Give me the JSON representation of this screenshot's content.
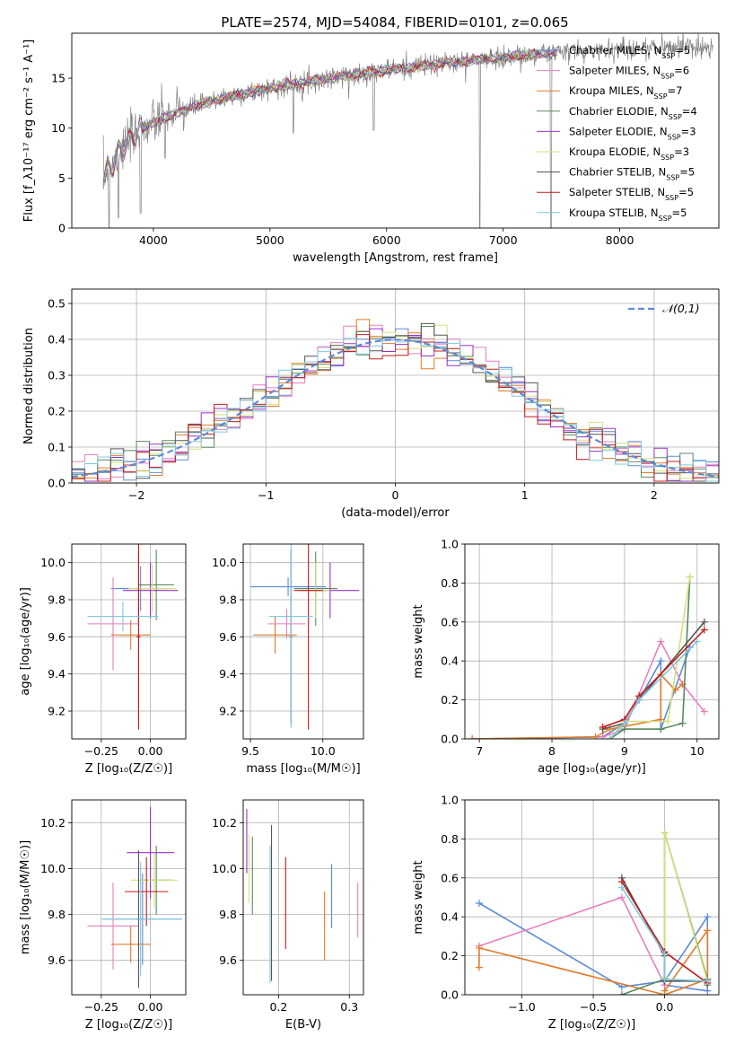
{
  "title": "PLATE=2574, MJD=54084, FIBERID=0101, z=0.065",
  "colors": {
    "grey": "#808080",
    "blue": "#5b8bd8",
    "orange": "#e07b2a",
    "green": "#5a8a5e",
    "purple": "#9b30c8",
    "yellow": "#d4e07a",
    "darkgray": "#555555",
    "red": "#c41a1a",
    "cyan": "#7fc8e0",
    "pink": "#e87fbf",
    "lime": "#a6d854",
    "legend_dash": "#5b8bd8"
  },
  "chart_data": [
    {
      "id": "spectrum",
      "type": "line",
      "xlabel": "wavelength [Angstrom, rest frame]",
      "ylabel": "Flux [f_λ10⁻¹⁷ erg cm⁻² s⁻¹ A⁻¹]",
      "xlim": [
        3300,
        8850
      ],
      "ylim": [
        0,
        19.5
      ],
      "xticks": [
        4000,
        5000,
        6000,
        7000,
        8000
      ],
      "yticks": [
        0,
        5,
        10,
        15
      ],
      "grid": false,
      "legend_position": "top-right",
      "legend": [
        {
          "label": "Chabrier MILES, N_SSP=5",
          "color": "#5b8bd8"
        },
        {
          "label": "Salpeter MILES, N_SSP=6",
          "color": "#e87fbf"
        },
        {
          "label": "Kroupa MILES, N_SSP=7",
          "color": "#e07b2a"
        },
        {
          "label": "Chabrier ELODIE, N_SSP=4",
          "color": "#5a8a5e"
        },
        {
          "label": "Salpeter ELODIE, N_SSP=3",
          "color": "#9b30c8"
        },
        {
          "label": "Kroupa ELODIE, N_SSP=3",
          "color": "#d4e07a"
        },
        {
          "label": "Chabrier STELIB, N_SSP=5",
          "color": "#555555"
        },
        {
          "label": "Salpeter STELIB, N_SSP=5",
          "color": "#c41a1a"
        },
        {
          "label": "Kroupa STELIB, N_SSP=5",
          "color": "#7fc8e0"
        }
      ],
      "continuum": {
        "x": [
          3570,
          3700,
          3850,
          4000,
          4300,
          4600,
          5000,
          5500,
          6000,
          6500,
          7000,
          7500,
          8000,
          8500,
          8800
        ],
        "y": [
          5.0,
          7.5,
          9.5,
          10.5,
          12.0,
          13.0,
          14.0,
          15.0,
          15.8,
          16.5,
          17.1,
          17.6,
          17.9,
          18.1,
          18.2
        ]
      },
      "data_range": [
        3570,
        8800
      ],
      "model_range": [
        3570,
        7460
      ],
      "dips": [
        {
          "x": 3620,
          "y": 0.0
        },
        {
          "x": 3700,
          "y": 1.0
        },
        {
          "x": 3890,
          "y": 1.5
        },
        {
          "x": 4100,
          "y": 7.0
        },
        {
          "x": 5200,
          "y": 9.5
        },
        {
          "x": 5890,
          "y": 9.8
        },
        {
          "x": 6800,
          "y": 0.0
        },
        {
          "x": 7410,
          "y": 0.0
        }
      ]
    },
    {
      "id": "residuals",
      "type": "histogram",
      "xlabel": "(data-model)/error",
      "ylabel": "Normed distribution",
      "xlim": [
        -2.5,
        2.5
      ],
      "ylim": [
        0,
        0.54
      ],
      "xticks": [
        -2,
        -1,
        0,
        1,
        2
      ],
      "yticks": [
        0.0,
        0.1,
        0.2,
        0.3,
        0.4,
        0.5
      ],
      "grid": true,
      "legend_position": "top-right",
      "legend": [
        {
          "label": "𝒩(0,1)",
          "color": "#5b8bd8"
        }
      ],
      "bin_width": 0.1
    },
    {
      "id": "age-vs-Z",
      "type": "errorbar",
      "xlabel": "Z [log₁₀(Z/Z☉)]",
      "ylabel": "age  [log₁₀(age/yr)]",
      "xlim": [
        -0.4,
        0.18
      ],
      "ylim": [
        9.05,
        10.1
      ],
      "xticks": [
        -0.25,
        0.0
      ],
      "yticks": [
        9.2,
        9.4,
        9.6,
        9.8,
        10.0
      ],
      "grid": true,
      "points": [
        {
          "x": -0.05,
          "y": 9.86,
          "xerr": 0.15,
          "yerr": 0.12,
          "color": "#5b8bd8"
        },
        {
          "x": -0.19,
          "y": 9.67,
          "xerr": 0.13,
          "yerr": 0.25,
          "color": "#e87fbf"
        },
        {
          "x": -0.1,
          "y": 9.61,
          "xerr": 0.1,
          "yerr": 0.08,
          "color": "#e07b2a"
        },
        {
          "x": 0.03,
          "y": 9.88,
          "xerr": 0.09,
          "yerr": 0.19,
          "color": "#5a8a5e"
        },
        {
          "x": 0.0,
          "y": 9.85,
          "xerr": 0.14,
          "yerr": 0.15,
          "color": "#9b30c8"
        },
        {
          "x": 0.01,
          "y": 9.86,
          "xerr": 0.12,
          "yerr": 0.13,
          "color": "#d4e07a"
        },
        {
          "x": -0.06,
          "y": 9.6,
          "xerr": 0.01,
          "yerr": 0.46,
          "color": "#555555"
        },
        {
          "x": -0.06,
          "y": 9.6,
          "xerr": 0.01,
          "yerr": 0.5,
          "color": "#c41a1a"
        },
        {
          "x": -0.14,
          "y": 9.71,
          "xerr": 0.18,
          "yerr": 0.08,
          "color": "#7fc8e0"
        }
      ]
    },
    {
      "id": "age-vs-mass",
      "type": "errorbar",
      "xlabel": "mass [log₁₀(M/M☉)]",
      "ylabel": "",
      "xlim": [
        9.45,
        10.28
      ],
      "ylim": [
        9.05,
        10.1
      ],
      "xticks": [
        9.5,
        10.0
      ],
      "yticks": [
        9.2,
        9.4,
        9.6,
        9.8,
        10.0
      ],
      "grid": true,
      "points": [
        {
          "x": 9.76,
          "y": 9.87,
          "xerr": 0.26,
          "yerr": 0.05,
          "color": "#5b8bd8"
        },
        {
          "x": 9.75,
          "y": 9.67,
          "xerr": 0.13,
          "yerr": 0.08,
          "color": "#e87fbf"
        },
        {
          "x": 9.67,
          "y": 9.61,
          "xerr": 0.15,
          "yerr": 0.1,
          "color": "#e07b2a"
        },
        {
          "x": 9.95,
          "y": 9.86,
          "xerr": 0.15,
          "yerr": 0.2,
          "color": "#5a8a5e"
        },
        {
          "x": 10.05,
          "y": 9.85,
          "xerr": 0.2,
          "yerr": 0.15,
          "color": "#9b30c8"
        },
        {
          "x": 9.95,
          "y": 9.85,
          "xerr": 0.1,
          "yerr": 0.15,
          "color": "#d4e07a"
        },
        {
          "x": 9.78,
          "y": 9.6,
          "xerr": 0.01,
          "yerr": 0.47,
          "color": "#555555"
        },
        {
          "x": 9.9,
          "y": 9.85,
          "xerr": 0.1,
          "yerr": 0.75,
          "color": "#c41a1a"
        },
        {
          "x": 9.78,
          "y": 9.71,
          "xerr": 0.15,
          "yerr": 0.6,
          "color": "#7fc8e0"
        }
      ]
    },
    {
      "id": "mass-weight-vs-age",
      "type": "line",
      "xlabel": "age  [log₁₀(age/yr)]",
      "ylabel": "mass weight",
      "xlim": [
        6.8,
        10.3
      ],
      "ylim": [
        0,
        1.0
      ],
      "xticks": [
        7,
        8,
        9,
        10
      ],
      "yticks": [
        0.0,
        0.2,
        0.4,
        0.6,
        0.8,
        1.0
      ],
      "grid": true,
      "series": [
        {
          "color": "#5b8bd8",
          "x": [
            6.9,
            8.7,
            9.0,
            9.2,
            9.5,
            9.5,
            9.9
          ],
          "y": [
            0.0,
            0.01,
            0.08,
            0.2,
            0.4,
            0.05,
            0.47
          ]
        },
        {
          "color": "#e87fbf",
          "x": [
            8.7,
            9.0,
            9.5,
            9.8,
            10.1
          ],
          "y": [
            0.01,
            0.05,
            0.5,
            0.28,
            0.14
          ]
        },
        {
          "color": "#e07b2a",
          "x": [
            6.9,
            8.6,
            8.8,
            9.5,
            9.5,
            9.7,
            9.8
          ],
          "y": [
            0.0,
            0.01,
            0.05,
            0.1,
            0.33,
            0.25,
            0.28
          ]
        },
        {
          "color": "#5a8a5e",
          "x": [
            8.8,
            9.0,
            9.5,
            9.8,
            9.9
          ],
          "y": [
            0.0,
            0.05,
            0.05,
            0.08,
            0.83
          ]
        },
        {
          "color": "#d4e07a",
          "x": [
            8.8,
            9.0,
            9.6,
            9.9
          ],
          "y": [
            0.0,
            0.09,
            0.09,
            0.83
          ]
        },
        {
          "color": "#555555",
          "x": [
            8.7,
            9.0,
            9.2,
            10.1
          ],
          "y": [
            0.05,
            0.08,
            0.2,
            0.6
          ]
        },
        {
          "color": "#c41a1a",
          "x": [
            8.7,
            9.0,
            9.2,
            10.1
          ],
          "y": [
            0.06,
            0.1,
            0.22,
            0.56
          ]
        },
        {
          "color": "#7fc8e0",
          "x": [
            8.8,
            9.0,
            9.2,
            10.0
          ],
          "y": [
            0.0,
            0.08,
            0.2,
            0.5
          ]
        }
      ]
    },
    {
      "id": "mass-vs-Z",
      "type": "errorbar",
      "xlabel": "Z [log₁₀(Z/Z☉)]",
      "ylabel": "mass [log₁₀(M/M☉)]",
      "xlim": [
        -0.4,
        0.18
      ],
      "ylim": [
        9.45,
        10.3
      ],
      "xticks": [
        -0.25,
        0.0
      ],
      "yticks": [
        9.6,
        9.8,
        10.0,
        10.2
      ],
      "grid": true,
      "points": [
        {
          "x": -0.04,
          "y": 9.78,
          "xerr": 0.2,
          "yerr": 0.2,
          "color": "#5b8bd8"
        },
        {
          "x": -0.19,
          "y": 9.75,
          "xerr": 0.13,
          "yerr": 0.19,
          "color": "#e87fbf"
        },
        {
          "x": -0.1,
          "y": 9.67,
          "xerr": 0.1,
          "yerr": 0.08,
          "color": "#e07b2a"
        },
        {
          "x": 0.03,
          "y": 9.95,
          "xerr": 0.08,
          "yerr": 0.15,
          "color": "#5a8a5e"
        },
        {
          "x": 0.0,
          "y": 10.07,
          "xerr": 0.12,
          "yerr": 0.2,
          "color": "#9b30c8"
        },
        {
          "x": 0.02,
          "y": 9.95,
          "xerr": 0.12,
          "yerr": 0.12,
          "color": "#d4e07a"
        },
        {
          "x": -0.06,
          "y": 9.78,
          "xerr": 0.01,
          "yerr": 0.3,
          "color": "#555555"
        },
        {
          "x": -0.02,
          "y": 9.9,
          "xerr": 0.11,
          "yerr": 0.15,
          "color": "#c41a1a"
        },
        {
          "x": -0.05,
          "y": 9.78,
          "xerr": 0.2,
          "yerr": 0.25,
          "color": "#7fc8e0"
        }
      ]
    },
    {
      "id": "mass-vs-EBV",
      "type": "errorbar",
      "xlabel": "E(B-V)",
      "ylabel": "",
      "xlim": [
        0.15,
        0.32
      ],
      "ylim": [
        9.45,
        10.3
      ],
      "xticks": [
        0.2,
        0.3
      ],
      "yticks": [
        9.6,
        9.8,
        10.0,
        10.2
      ],
      "grid": true,
      "points": [
        {
          "x": 0.275,
          "y": 9.88,
          "xerr": 0.0,
          "yerr": 0.14,
          "color": "#5b8bd8"
        },
        {
          "x": 0.312,
          "y": 9.82,
          "xerr": 0.0,
          "yerr": 0.12,
          "color": "#e87fbf"
        },
        {
          "x": 0.265,
          "y": 9.75,
          "xerr": 0.0,
          "yerr": 0.15,
          "color": "#e07b2a"
        },
        {
          "x": 0.163,
          "y": 9.97,
          "xerr": 0.0,
          "yerr": 0.17,
          "color": "#5a8a5e"
        },
        {
          "x": 0.155,
          "y": 10.12,
          "xerr": 0.0,
          "yerr": 0.14,
          "color": "#9b30c8"
        },
        {
          "x": 0.158,
          "y": 10.0,
          "xerr": 0.0,
          "yerr": 0.15,
          "color": "#d4e07a"
        },
        {
          "x": 0.19,
          "y": 9.85,
          "xerr": 0.0,
          "yerr": 0.34,
          "color": "#555555"
        },
        {
          "x": 0.21,
          "y": 9.85,
          "xerr": 0.0,
          "yerr": 0.2,
          "color": "#c41a1a"
        },
        {
          "x": 0.188,
          "y": 9.8,
          "xerr": 0.0,
          "yerr": 0.3,
          "color": "#7fc8e0"
        }
      ]
    },
    {
      "id": "mass-weight-vs-Z",
      "type": "line",
      "xlabel": "Z [log₁₀(Z/Z☉)]",
      "ylabel": "mass weight",
      "xlim": [
        -1.4,
        0.38
      ],
      "ylim": [
        0,
        1.0
      ],
      "xticks": [
        -1.0,
        -0.5,
        0.0
      ],
      "yticks": [
        0.0,
        0.2,
        0.4,
        0.6,
        0.8,
        1.0
      ],
      "grid": true,
      "series": [
        {
          "color": "#5b8bd8",
          "x": [
            -1.3,
            -0.3,
            0.0,
            0.3,
            0.3,
            0.0
          ],
          "y": [
            0.47,
            0.04,
            0.07,
            0.4,
            0.02,
            0.05
          ]
        },
        {
          "color": "#e87fbf",
          "x": [
            -1.3,
            -0.3,
            0.0,
            0.0,
            0.3
          ],
          "y": [
            0.25,
            0.5,
            0.05,
            0.0,
            0.08
          ]
        },
        {
          "color": "#e07b2a",
          "x": [
            -1.3,
            -1.3,
            0.0,
            0.3,
            0.3,
            0.0
          ],
          "y": [
            0.14,
            0.24,
            0.0,
            0.08,
            0.33,
            0.02
          ]
        },
        {
          "color": "#5a8a5e",
          "x": [
            -0.3,
            0.0,
            0.0,
            0.3,
            0.3
          ],
          "y": [
            0.0,
            0.08,
            0.83,
            0.08,
            0.05
          ]
        },
        {
          "color": "#d4e07a",
          "x": [
            0.0,
            0.0,
            0.3
          ],
          "y": [
            0.09,
            0.83,
            0.07
          ]
        },
        {
          "color": "#555555",
          "x": [
            -0.3,
            0.0,
            0.0,
            0.3
          ],
          "y": [
            0.6,
            0.2,
            0.07,
            0.07
          ]
        },
        {
          "color": "#c41a1a",
          "x": [
            -0.3,
            0.0,
            0.3
          ],
          "y": [
            0.58,
            0.22,
            0.06
          ]
        },
        {
          "color": "#7fc8e0",
          "x": [
            -0.3,
            0.0,
            0.0,
            0.3
          ],
          "y": [
            0.55,
            0.21,
            0.08,
            0.07
          ]
        }
      ]
    }
  ]
}
